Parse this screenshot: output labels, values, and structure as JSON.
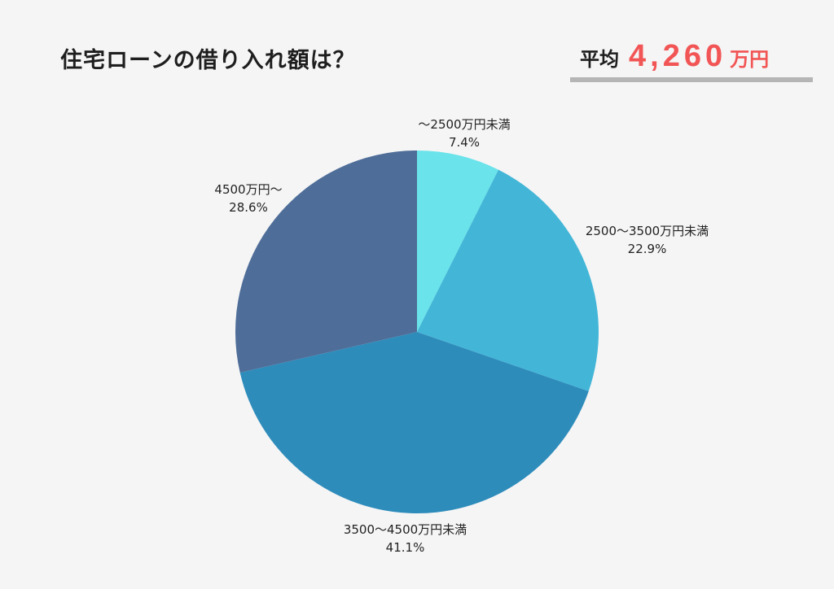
{
  "header": {
    "title": "住宅ローンの借り入れ額は？",
    "average_label": "平均",
    "average_value": "4,260",
    "average_unit": "万円"
  },
  "colors": {
    "accent": "#f25555",
    "background": "#f5f5f5"
  },
  "chart_data": {
    "type": "pie",
    "title": "住宅ローンの借り入れ額は？",
    "slices": [
      {
        "label": "～2500万円未満",
        "value": 7.4,
        "display": "7.4%",
        "color": "#6ae3ea"
      },
      {
        "label": "2500～3500万円未満",
        "value": 22.9,
        "display": "22.9%",
        "color": "#43b6d8"
      },
      {
        "label": "3500～4500万円未満",
        "value": 41.1,
        "display": "41.1%",
        "color": "#2e8cbb"
      },
      {
        "label": "4500万円～",
        "value": 28.6,
        "display": "28.6%",
        "color": "#4e6d98"
      }
    ]
  }
}
